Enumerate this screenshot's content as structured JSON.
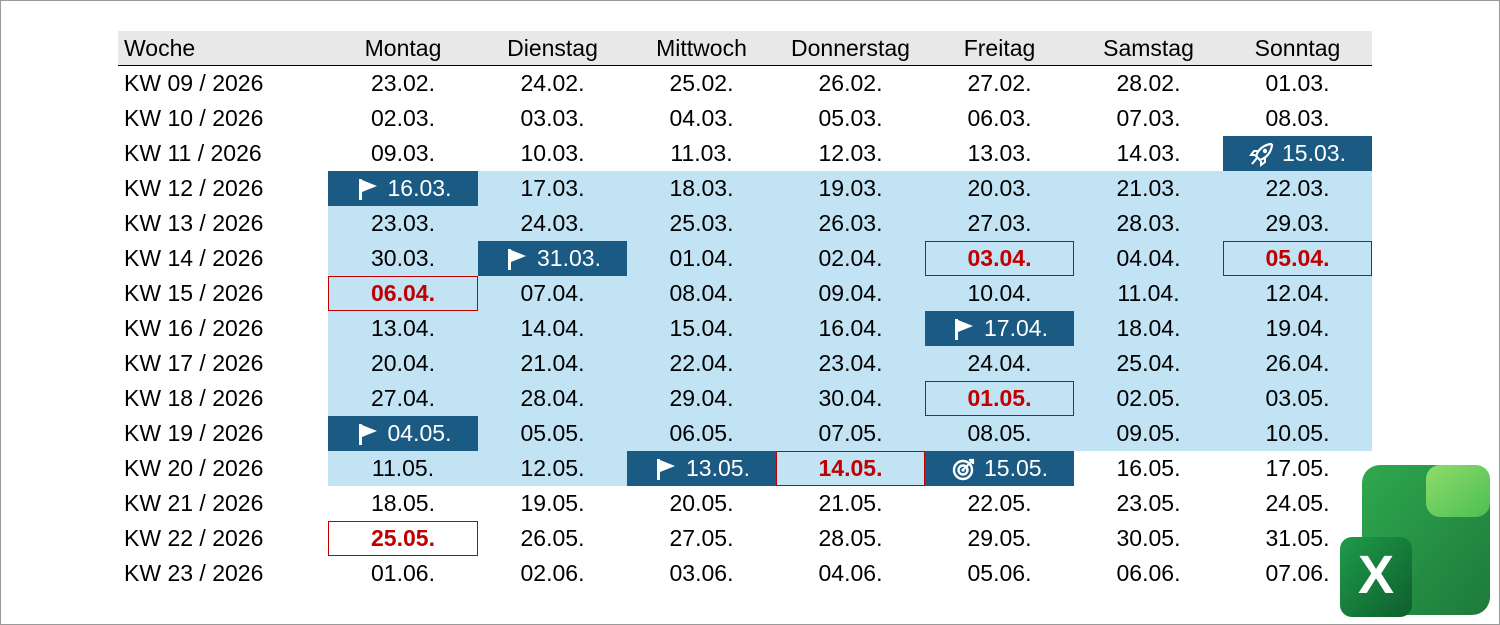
{
  "colors": {
    "highlight": "#c2e3f3",
    "milestone": "#1b5a82",
    "holiday": "#c00000",
    "header_bg": "#e8e8e8"
  },
  "header": [
    "Woche",
    "Montag",
    "Dienstag",
    "Mittwoch",
    "Donnerstag",
    "Freitag",
    "Samstag",
    "Sonntag"
  ],
  "rows": [
    {
      "week": "KW 09 / 2026",
      "days": [
        {
          "d": "23.02."
        },
        {
          "d": "24.02."
        },
        {
          "d": "25.02."
        },
        {
          "d": "26.02."
        },
        {
          "d": "27.02."
        },
        {
          "d": "28.02."
        },
        {
          "d": "01.03."
        }
      ]
    },
    {
      "week": "KW 10 / 2026",
      "days": [
        {
          "d": "02.03."
        },
        {
          "d": "03.03."
        },
        {
          "d": "04.03."
        },
        {
          "d": "05.03."
        },
        {
          "d": "06.03."
        },
        {
          "d": "07.03."
        },
        {
          "d": "08.03."
        }
      ]
    },
    {
      "week": "KW 11 / 2026",
      "days": [
        {
          "d": "09.03."
        },
        {
          "d": "10.03."
        },
        {
          "d": "11.03."
        },
        {
          "d": "12.03."
        },
        {
          "d": "13.03."
        },
        {
          "d": "14.03."
        },
        {
          "d": "15.03.",
          "style": "milestone",
          "icon": "rocket-icon"
        }
      ]
    },
    {
      "week": "KW 12 / 2026",
      "days": [
        {
          "d": "16.03.",
          "style": "milestone",
          "icon": "flag-icon",
          "hl": true
        },
        {
          "d": "17.03.",
          "hl": true
        },
        {
          "d": "18.03.",
          "hl": true
        },
        {
          "d": "19.03.",
          "hl": true
        },
        {
          "d": "20.03.",
          "hl": true
        },
        {
          "d": "21.03.",
          "hl": true
        },
        {
          "d": "22.03.",
          "hl": true
        }
      ]
    },
    {
      "week": "KW 13 / 2026",
      "days": [
        {
          "d": "23.03.",
          "hl": true
        },
        {
          "d": "24.03.",
          "hl": true
        },
        {
          "d": "25.03.",
          "hl": true
        },
        {
          "d": "26.03.",
          "hl": true
        },
        {
          "d": "27.03.",
          "hl": true
        },
        {
          "d": "28.03.",
          "hl": true
        },
        {
          "d": "29.03.",
          "hl": true
        }
      ]
    },
    {
      "week": "KW 14 / 2026",
      "days": [
        {
          "d": "30.03.",
          "hl": true
        },
        {
          "d": "31.03.",
          "style": "milestone",
          "icon": "flag-icon",
          "hl": true
        },
        {
          "d": "01.04.",
          "hl": true
        },
        {
          "d": "02.04.",
          "hl": true
        },
        {
          "d": "03.04.",
          "style": "holiday",
          "hl": true
        },
        {
          "d": "04.04.",
          "hl": true
        },
        {
          "d": "05.04.",
          "style": "holiday",
          "hl": true
        }
      ]
    },
    {
      "week": "KW 15 / 2026",
      "days": [
        {
          "d": "06.04.",
          "style": "holiday",
          "hl": true
        },
        {
          "d": "07.04.",
          "hl": true
        },
        {
          "d": "08.04.",
          "hl": true
        },
        {
          "d": "09.04.",
          "hl": true
        },
        {
          "d": "10.04.",
          "hl": true
        },
        {
          "d": "11.04.",
          "hl": true
        },
        {
          "d": "12.04.",
          "hl": true
        }
      ]
    },
    {
      "week": "KW 16 / 2026",
      "days": [
        {
          "d": "13.04.",
          "hl": true
        },
        {
          "d": "14.04.",
          "hl": true
        },
        {
          "d": "15.04.",
          "hl": true
        },
        {
          "d": "16.04.",
          "hl": true
        },
        {
          "d": "17.04.",
          "style": "milestone",
          "icon": "flag-icon",
          "hl": true
        },
        {
          "d": "18.04.",
          "hl": true
        },
        {
          "d": "19.04.",
          "hl": true
        }
      ]
    },
    {
      "week": "KW 17 / 2026",
      "days": [
        {
          "d": "20.04.",
          "hl": true
        },
        {
          "d": "21.04.",
          "hl": true
        },
        {
          "d": "22.04.",
          "hl": true
        },
        {
          "d": "23.04.",
          "hl": true
        },
        {
          "d": "24.04.",
          "hl": true
        },
        {
          "d": "25.04.",
          "hl": true
        },
        {
          "d": "26.04.",
          "hl": true
        }
      ]
    },
    {
      "week": "KW 18 / 2026",
      "days": [
        {
          "d": "27.04.",
          "hl": true
        },
        {
          "d": "28.04.",
          "hl": true
        },
        {
          "d": "29.04.",
          "hl": true
        },
        {
          "d": "30.04.",
          "hl": true
        },
        {
          "d": "01.05.",
          "style": "holiday",
          "hl": true
        },
        {
          "d": "02.05.",
          "hl": true
        },
        {
          "d": "03.05.",
          "hl": true
        }
      ]
    },
    {
      "week": "KW 19 / 2026",
      "days": [
        {
          "d": "04.05.",
          "style": "milestone",
          "icon": "flag-icon",
          "hl": true
        },
        {
          "d": "05.05.",
          "hl": true
        },
        {
          "d": "06.05.",
          "hl": true
        },
        {
          "d": "07.05.",
          "hl": true
        },
        {
          "d": "08.05.",
          "hl": true
        },
        {
          "d": "09.05.",
          "hl": true
        },
        {
          "d": "10.05.",
          "hl": true
        }
      ]
    },
    {
      "week": "KW 20 / 2026",
      "days": [
        {
          "d": "11.05.",
          "hl": true
        },
        {
          "d": "12.05.",
          "hl": true
        },
        {
          "d": "13.05.",
          "style": "milestone",
          "icon": "flag-icon",
          "hl": true
        },
        {
          "d": "14.05.",
          "style": "holiday",
          "hl": true
        },
        {
          "d": "15.05.",
          "style": "milestone",
          "icon": "target-icon",
          "hl": true
        },
        {
          "d": "16.05."
        },
        {
          "d": "17.05."
        }
      ]
    },
    {
      "week": "KW 21 / 2026",
      "days": [
        {
          "d": "18.05."
        },
        {
          "d": "19.05."
        },
        {
          "d": "20.05."
        },
        {
          "d": "21.05."
        },
        {
          "d": "22.05."
        },
        {
          "d": "23.05."
        },
        {
          "d": "24.05."
        }
      ]
    },
    {
      "week": "KW 22 / 2026",
      "days": [
        {
          "d": "25.05.",
          "style": "holiday"
        },
        {
          "d": "26.05."
        },
        {
          "d": "27.05."
        },
        {
          "d": "28.05."
        },
        {
          "d": "29.05."
        },
        {
          "d": "30.05."
        },
        {
          "d": "31.05."
        }
      ]
    },
    {
      "week": "KW 23 / 2026",
      "days": [
        {
          "d": "01.06."
        },
        {
          "d": "02.06."
        },
        {
          "d": "03.06."
        },
        {
          "d": "04.06."
        },
        {
          "d": "05.06."
        },
        {
          "d": "06.06."
        },
        {
          "d": "07.06."
        }
      ]
    }
  ],
  "logo": {
    "icon": "excel-logo-icon",
    "letter": "X"
  }
}
